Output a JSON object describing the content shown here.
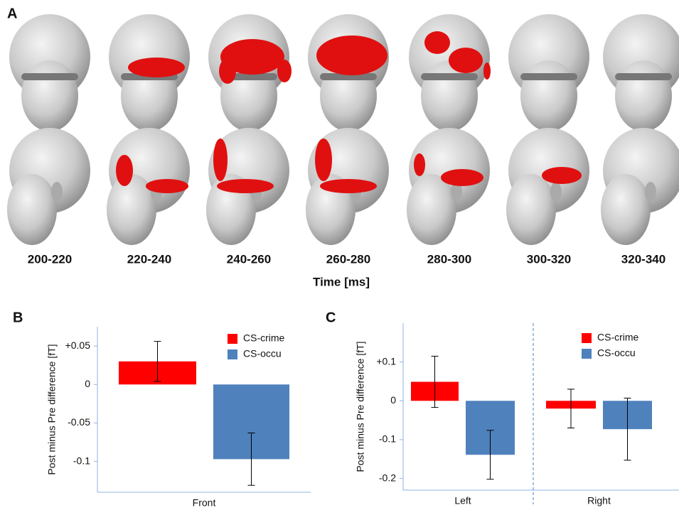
{
  "panel_a": {
    "label": "A",
    "time_windows": [
      "200-220",
      "220-240",
      "240-260",
      "260-280",
      "280-300",
      "300-320",
      "320-340"
    ],
    "xlabel": "Time [ms]"
  },
  "chart_data": [
    {
      "type": "bar",
      "panel": "B",
      "ylabel": "Post minus Pre difference [fT]",
      "categories": [
        "Front"
      ],
      "series": [
        {
          "name": "CS-crime",
          "color": "#ff0000",
          "values": [
            0.03
          ],
          "errors": [
            0.026
          ]
        },
        {
          "name": "CS-occu",
          "color": "#4f81bd",
          "values": [
            -0.097
          ],
          "errors": [
            0.034
          ]
        }
      ],
      "ylim": [
        -0.14,
        0.075
      ],
      "yticks": [
        {
          "value": 0.05,
          "label": "+0.05"
        },
        0,
        -0.05,
        -0.1
      ],
      "legend": "upper right",
      "divider": false
    },
    {
      "type": "bar",
      "panel": "C",
      "ylabel": "Post minus Pre difference [fT]",
      "categories": [
        "Left",
        "Right"
      ],
      "series": [
        {
          "name": "CS-crime",
          "color": "#ff0000",
          "values": [
            0.049,
            -0.02
          ],
          "errors": [
            0.066,
            0.05
          ]
        },
        {
          "name": "CS-occu",
          "color": "#4f81bd",
          "values": [
            -0.139,
            -0.073
          ],
          "errors": [
            0.063,
            0.08
          ]
        }
      ],
      "ylim": [
        -0.23,
        0.2
      ],
      "yticks": [
        {
          "value": 0.1,
          "label": "+0.1"
        },
        0,
        -0.1,
        -0.2
      ],
      "legend": "upper right",
      "divider": true
    }
  ]
}
